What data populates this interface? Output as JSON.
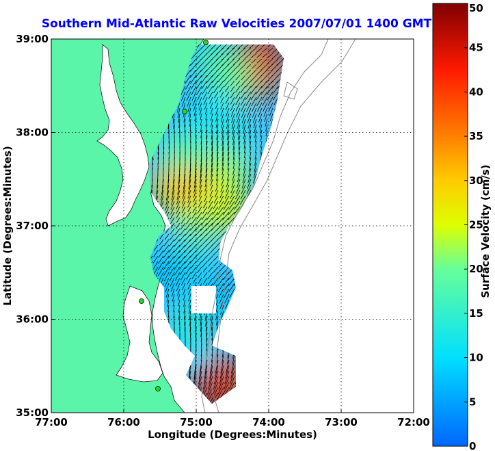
{
  "chart_data": {
    "type": "heatmap",
    "title": "Southern Mid-Atlantic Raw Velocities 2007/07/01 1400 GMT",
    "xlabel": "Longitude (Degrees:Minutes)",
    "ylabel": "Latitude (Degrees:Minutes)",
    "xlim": [
      -77,
      -72
    ],
    "ylim": [
      35,
      39
    ],
    "x_tick_labels": [
      "77:00",
      "76:00",
      "75:00",
      "74:00",
      "73:00",
      "72:00"
    ],
    "y_tick_labels": [
      "35:00",
      "36:00",
      "37:00",
      "38:00",
      "39:00"
    ],
    "grid": true,
    "colorbar": {
      "label": "Surface Velocity (cm/s)",
      "range": [
        0,
        50
      ],
      "tick_labels": [
        "0",
        "5",
        "10",
        "15",
        "20",
        "25",
        "30",
        "35",
        "40",
        "45",
        "50"
      ]
    },
    "land_color": "#5af5a8",
    "field_samples": [
      {
        "lon": -74.1,
        "lat": 38.85,
        "speed": 45
      },
      {
        "lon": -74.15,
        "lat": 38.6,
        "speed": 40
      },
      {
        "lon": -74.8,
        "lat": 38.8,
        "speed": 15
      },
      {
        "lon": -74.5,
        "lat": 38.6,
        "speed": 20
      },
      {
        "lon": -74.9,
        "lat": 38.2,
        "speed": 10
      },
      {
        "lon": -74.5,
        "lat": 38.0,
        "speed": 12
      },
      {
        "lon": -75.2,
        "lat": 37.8,
        "speed": 18
      },
      {
        "lon": -74.6,
        "lat": 37.6,
        "speed": 22
      },
      {
        "lon": -75.3,
        "lat": 37.4,
        "speed": 30
      },
      {
        "lon": -74.9,
        "lat": 37.3,
        "speed": 32
      },
      {
        "lon": -74.6,
        "lat": 37.2,
        "speed": 25
      },
      {
        "lon": -75.0,
        "lat": 37.0,
        "speed": 22
      },
      {
        "lon": -75.1,
        "lat": 36.7,
        "speed": 12
      },
      {
        "lon": -75.4,
        "lat": 36.5,
        "speed": 8
      },
      {
        "lon": -74.8,
        "lat": 36.2,
        "speed": 8
      },
      {
        "lon": -75.1,
        "lat": 35.9,
        "speed": 15
      },
      {
        "lon": -75.2,
        "lat": 35.6,
        "speed": 10
      },
      {
        "lon": -74.85,
        "lat": 35.2,
        "speed": 48
      },
      {
        "lon": -74.6,
        "lat": 35.35,
        "speed": 40
      }
    ]
  }
}
